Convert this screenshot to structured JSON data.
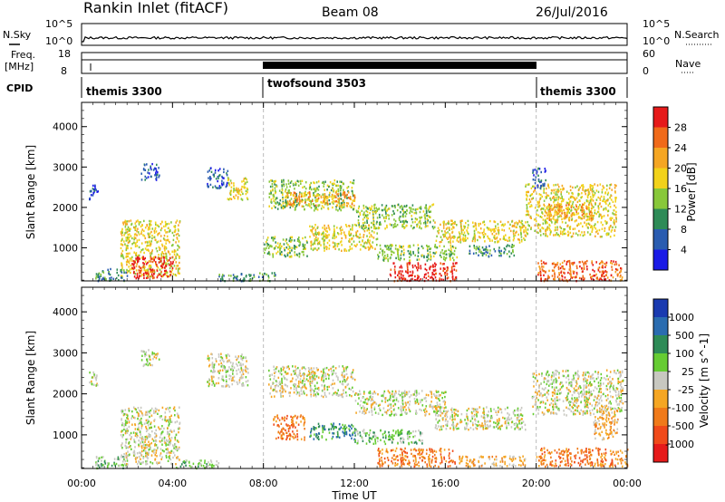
{
  "header": {
    "title": "Rankin Inlet (fitACF)",
    "beam": "Beam 08",
    "date": "26/Jul/2016"
  },
  "labels": {
    "nsky": "N.Sky",
    "nsearch": "N.Search",
    "freq_line1": "Freq.",
    "freq_line2": "[MHz]",
    "nave": "Nave",
    "cpid": "CPID",
    "nsky_top": "10^5",
    "nsky_bottom": "10^0",
    "freq_top": "18",
    "freq_bottom": "8",
    "nave_top": "60",
    "nave_bottom": "0"
  },
  "cpid_segments": [
    {
      "name": "themis 3300",
      "start": 0,
      "end": 8
    },
    {
      "name": "twofsound 3503",
      "start": 8,
      "end": 20
    },
    {
      "name": "themis 3300",
      "start": 20,
      "end": 24
    }
  ],
  "chart_data": [
    {
      "type": "heatmap",
      "title": "Power",
      "ylabel": "Slant Range [km]",
      "colorbar_label": "Power [dB]",
      "colorbar_ticks": [
        "4",
        "8",
        "12",
        "16",
        "20",
        "24",
        "28"
      ],
      "colors": [
        "#1a1ae6",
        "#2a5cb0",
        "#2e8b57",
        "#88c83a",
        "#f2d21a",
        "#f5a623",
        "#f06a1a",
        "#e61a1a"
      ],
      "x_ticks": [
        "00:00",
        "04:00",
        "08:00",
        "12:00",
        "16:00",
        "20:00",
        "00:00"
      ],
      "y_ticks": [
        "1000",
        "2000",
        "3000",
        "4000"
      ],
      "xlim": [
        0,
        24
      ],
      "ylim": [
        180,
        4600
      ],
      "regions": [
        {
          "t0": 0.3,
          "t1": 0.7,
          "r0": 2200,
          "r1": 2600,
          "level": 1
        },
        {
          "t0": 1.7,
          "t1": 4.3,
          "r0": 300,
          "r1": 1700,
          "level": 4
        },
        {
          "t0": 2.2,
          "t1": 4.0,
          "r0": 250,
          "r1": 800,
          "level": 7
        },
        {
          "t0": 2.6,
          "t1": 3.4,
          "r0": 2700,
          "r1": 3100,
          "level": 1
        },
        {
          "t0": 5.5,
          "t1": 6.4,
          "r0": 2500,
          "r1": 3000,
          "level": 1
        },
        {
          "t0": 6.4,
          "t1": 7.3,
          "r0": 2200,
          "r1": 2800,
          "level": 4
        },
        {
          "t0": 8.2,
          "t1": 12.0,
          "r0": 1950,
          "r1": 2700,
          "level": 3
        },
        {
          "t0": 9.0,
          "t1": 12.0,
          "r0": 2050,
          "r1": 2400,
          "level": 5
        },
        {
          "t0": 8.0,
          "t1": 10.0,
          "r0": 800,
          "r1": 1300,
          "level": 3
        },
        {
          "t0": 10.0,
          "t1": 13.0,
          "r0": 950,
          "r1": 1600,
          "level": 4
        },
        {
          "t0": 12.0,
          "t1": 15.5,
          "r0": 1500,
          "r1": 2100,
          "level": 3
        },
        {
          "t0": 13.0,
          "t1": 16.5,
          "r0": 700,
          "r1": 1100,
          "level": 3
        },
        {
          "t0": 13.5,
          "t1": 16.5,
          "r0": 200,
          "r1": 650,
          "level": 7
        },
        {
          "t0": 15.5,
          "t1": 19.5,
          "r0": 1150,
          "r1": 1700,
          "level": 4
        },
        {
          "t0": 17.0,
          "t1": 19.0,
          "r0": 800,
          "r1": 1100,
          "level": 2
        },
        {
          "t0": 19.5,
          "t1": 23.5,
          "r0": 1300,
          "r1": 2600,
          "level": 4
        },
        {
          "t0": 20.5,
          "t1": 22.5,
          "r0": 1700,
          "r1": 2100,
          "level": 5
        },
        {
          "t0": 20.0,
          "t1": 23.8,
          "r0": 200,
          "r1": 700,
          "level": 6
        },
        {
          "t0": 19.8,
          "t1": 20.4,
          "r0": 2500,
          "r1": 3000,
          "level": 1
        },
        {
          "t0": 6.0,
          "t1": 8.5,
          "r0": 200,
          "r1": 400,
          "level": 2
        },
        {
          "t0": 0.6,
          "t1": 2.0,
          "r0": 200,
          "r1": 500,
          "level": 2
        }
      ]
    },
    {
      "type": "heatmap",
      "title": "Velocity",
      "ylabel": "Slant Range [km]",
      "xlabel": "Time UT",
      "colorbar_label": "Velocity [m s^-1]",
      "colorbar_ticks": [
        "1000",
        "500",
        "100",
        "25",
        "-25",
        "-100",
        "-500",
        "-1000"
      ],
      "colors": [
        "#1a3ab0",
        "#2a6cb0",
        "#2e8b57",
        "#66cc33",
        "#c8c8c0",
        "#f5a623",
        "#f07a1a",
        "#f04a1a",
        "#e61a1a"
      ],
      "x_ticks": [
        "00:00",
        "04:00",
        "08:00",
        "12:00",
        "16:00",
        "20:00",
        "00:00"
      ],
      "y_ticks": [
        "1000",
        "2000",
        "3000",
        "4000"
      ],
      "xlim": [
        0,
        24
      ],
      "ylim": [
        180,
        4600
      ],
      "regions": [
        {
          "t0": 0.3,
          "t1": 0.7,
          "r0": 2200,
          "r1": 2600,
          "level": 4
        },
        {
          "t0": 1.7,
          "t1": 4.3,
          "r0": 300,
          "r1": 1700,
          "level": 4
        },
        {
          "t0": 2.6,
          "t1": 3.4,
          "r0": 2700,
          "r1": 3100,
          "level": 4
        },
        {
          "t0": 5.5,
          "t1": 7.3,
          "r0": 2200,
          "r1": 3000,
          "level": 4
        },
        {
          "t0": 8.2,
          "t1": 12.0,
          "r0": 1950,
          "r1": 2700,
          "level": 4
        },
        {
          "t0": 12.0,
          "t1": 16.0,
          "r0": 1500,
          "r1": 2100,
          "level": 4
        },
        {
          "t0": 15.5,
          "t1": 19.5,
          "r0": 1150,
          "r1": 1700,
          "level": 4
        },
        {
          "t0": 19.8,
          "t1": 23.8,
          "r0": 1500,
          "r1": 2600,
          "level": 4
        },
        {
          "t0": 8.4,
          "t1": 9.8,
          "r0": 900,
          "r1": 1500,
          "level": 6
        },
        {
          "t0": 10.0,
          "t1": 12.0,
          "r0": 900,
          "r1": 1300,
          "level": 2
        },
        {
          "t0": 12.0,
          "t1": 15.0,
          "r0": 800,
          "r1": 1150,
          "level": 3
        },
        {
          "t0": 13.0,
          "t1": 16.5,
          "r0": 250,
          "r1": 700,
          "level": 6
        },
        {
          "t0": 16.5,
          "t1": 19.5,
          "r0": 250,
          "r1": 500,
          "level": 5
        },
        {
          "t0": 20.0,
          "t1": 24.0,
          "r0": 250,
          "r1": 700,
          "level": 6
        },
        {
          "t0": 22.5,
          "t1": 23.6,
          "r0": 900,
          "r1": 1700,
          "level": 5
        },
        {
          "t0": 4.0,
          "t1": 6.0,
          "r0": 200,
          "r1": 400,
          "level": 3
        },
        {
          "t0": 0.6,
          "t1": 2.0,
          "r0": 200,
          "r1": 500,
          "level": 3
        }
      ]
    }
  ]
}
